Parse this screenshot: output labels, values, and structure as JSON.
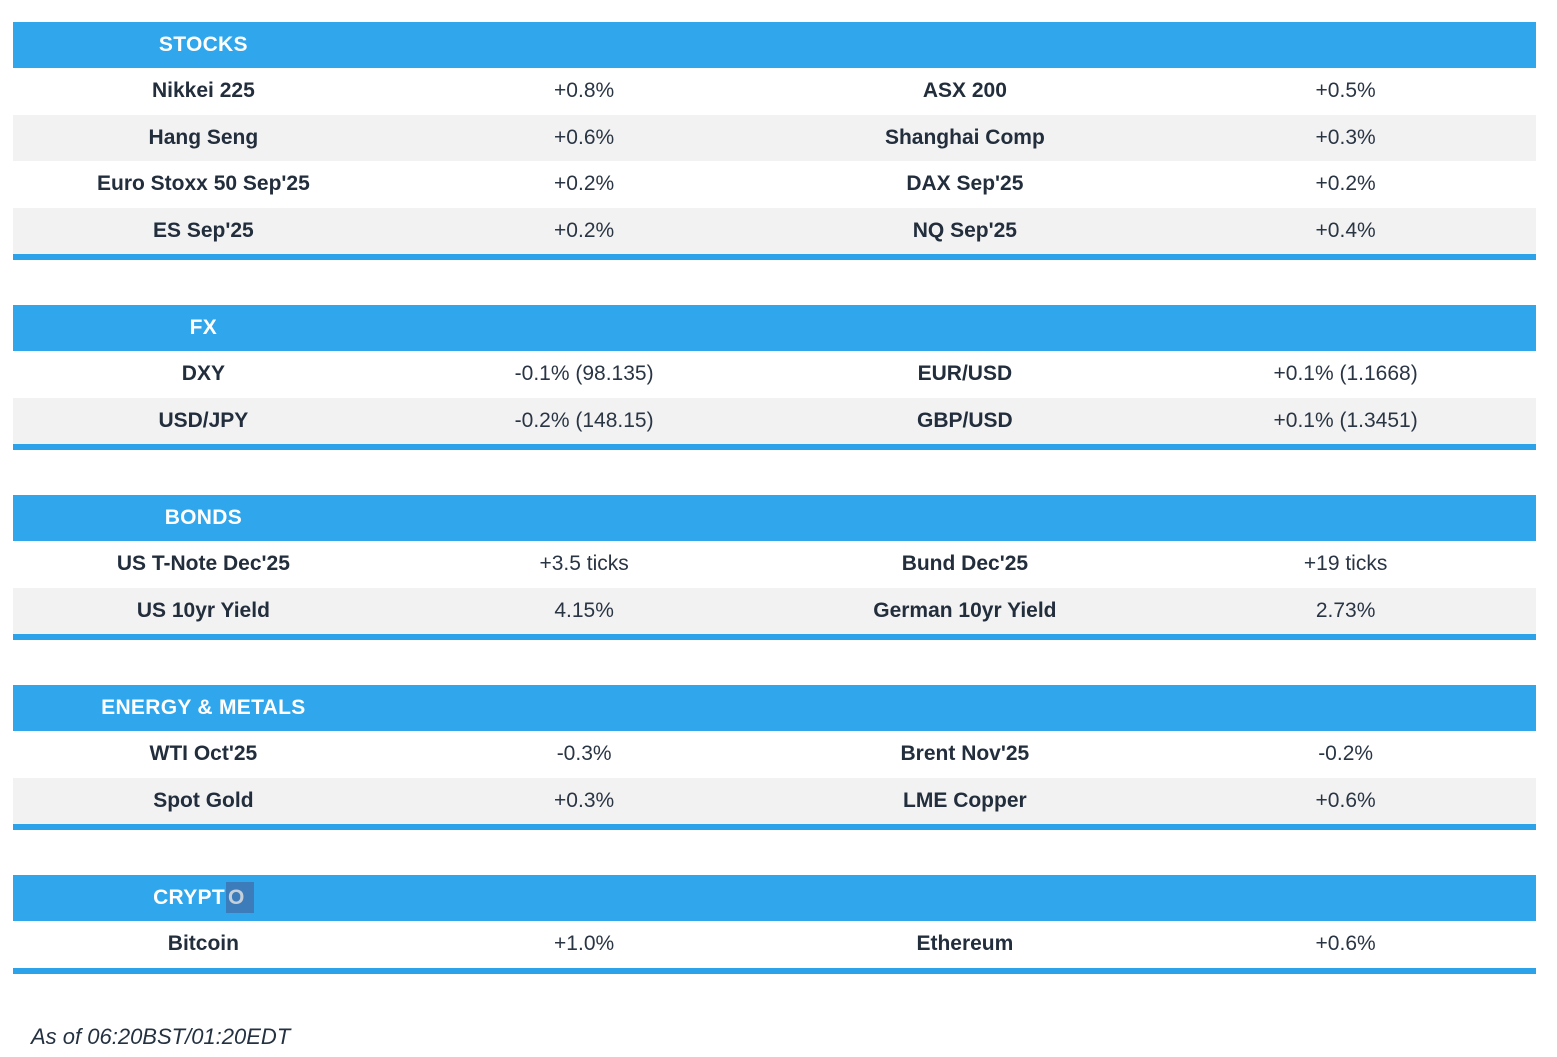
{
  "colors": {
    "accent_blue": "#30A6EC",
    "divider_blue": "#2BA2EA",
    "row_alt_gray": "#F2F2F2",
    "text_dark": "#242F3E",
    "selection_bg": "#3D7CBA",
    "selection_text": "#C6D0DA"
  },
  "sections": {
    "stocks": {
      "title": "STOCKS",
      "rows": [
        {
          "l1": "Nikkei 225",
          "v1": "+0.8%",
          "l2": "ASX 200",
          "v2": "+0.5%"
        },
        {
          "l1": "Hang Seng",
          "v1": "+0.6%",
          "l2": "Shanghai Comp",
          "v2": "+0.3%"
        },
        {
          "l1": "Euro Stoxx 50 Sep'25",
          "v1": "+0.2%",
          "l2": "DAX Sep'25",
          "v2": "+0.2%"
        },
        {
          "l1": "ES Sep'25",
          "v1": "+0.2%",
          "l2": "NQ Sep'25",
          "v2": "+0.4%"
        }
      ]
    },
    "fx": {
      "title": "FX",
      "rows": [
        {
          "l1": "DXY",
          "v1": "-0.1% (98.135)",
          "l2": "EUR/USD",
          "v2": "+0.1% (1.1668)"
        },
        {
          "l1": "USD/JPY",
          "v1": "-0.2% (148.15)",
          "l2": "GBP/USD",
          "v2": "+0.1% (1.3451)"
        }
      ]
    },
    "bonds": {
      "title": "BONDS",
      "rows": [
        {
          "l1": "US T-Note Dec'25",
          "v1": "+3.5 ticks",
          "l2": "Bund Dec'25",
          "v2": "+19 ticks"
        },
        {
          "l1": "US 10yr Yield",
          "v1": "4.15%",
          "l2": "German 10yr Yield",
          "v2": "2.73%"
        }
      ]
    },
    "energy_metals": {
      "title": "ENERGY & METALS",
      "rows": [
        {
          "l1": "WTI Oct'25",
          "v1": "-0.3%",
          "l2": "Brent Nov'25",
          "v2": "-0.2%"
        },
        {
          "l1": "Spot Gold",
          "v1": "+0.3%",
          "l2": "LME Copper",
          "v2": "+0.6%"
        }
      ]
    },
    "crypto": {
      "title_prefix": "CRYPT",
      "title_selected": "O",
      "rows": [
        {
          "l1": "Bitcoin",
          "v1": "+1.0%",
          "l2": "Ethereum",
          "v2": "+0.6%"
        }
      ]
    }
  },
  "footer": {
    "timestamp": "As of 06:20BST/01:20EDT"
  }
}
